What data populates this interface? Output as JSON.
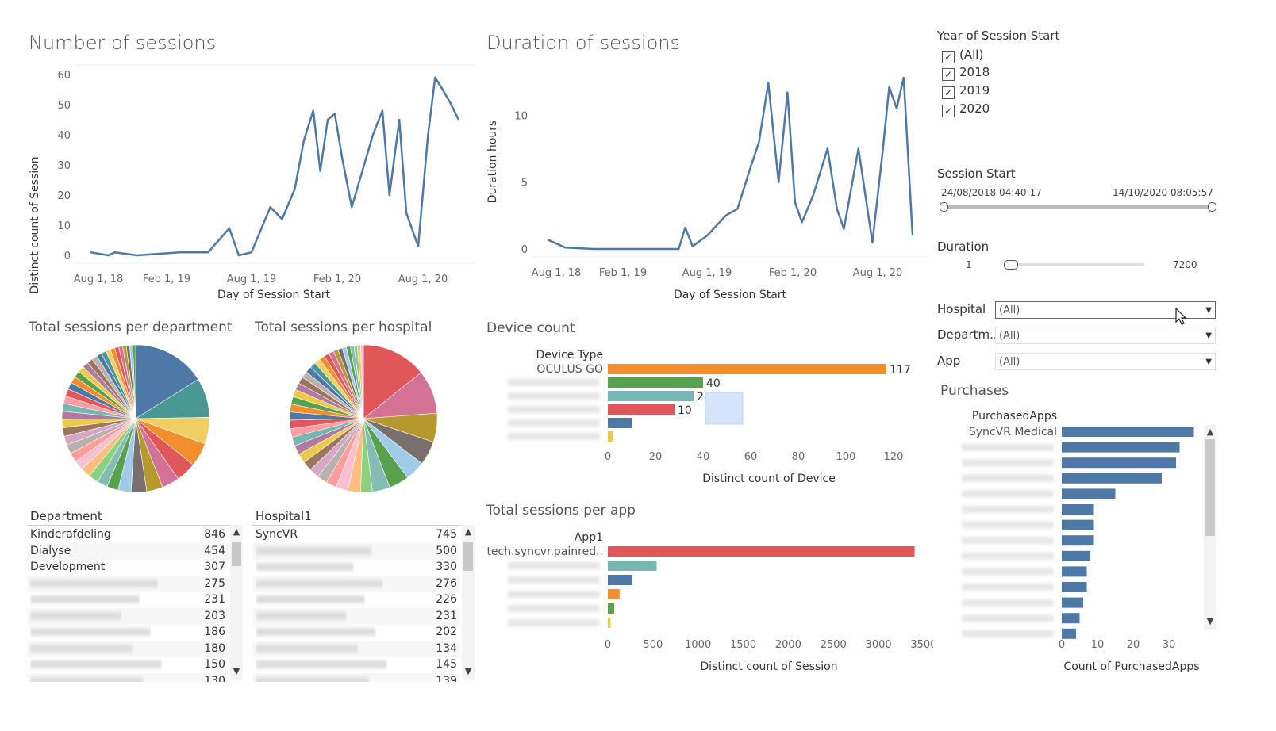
{
  "charts": {
    "sessions": {
      "title": "Number of sessions",
      "ylabel": "Distinct count of Session",
      "xlabel": "Day of Session Start",
      "xticks": [
        "Aug 1, 18",
        "Feb 1, 19",
        "Aug 1, 19",
        "Feb 1, 20",
        "Aug 1, 20"
      ],
      "yticks": [
        "60",
        "50",
        "40",
        "30",
        "20",
        "10",
        "0"
      ]
    },
    "duration": {
      "title": "Duration of sessions",
      "ylabel": "Duration hours",
      "xlabel": "Day of Session Start",
      "xticks": [
        "Aug 1, 18",
        "Feb 1, 19",
        "Aug 1, 19",
        "Feb 1, 20",
        "Aug 1, 20"
      ],
      "yticks": [
        "10",
        "5",
        "0"
      ]
    },
    "dept_pie": {
      "title": "Total sessions per department"
    },
    "hosp_pie": {
      "title": "Total sessions per hospital"
    },
    "device": {
      "title": "Device count",
      "header": "Device Type",
      "first_label": "OCULUS  GO",
      "xlabel": "Distinct count of Device",
      "xticks": [
        "0",
        "20",
        "40",
        "60",
        "80",
        "100",
        "120"
      ],
      "value_labels": [
        "117",
        "40",
        "28",
        "10"
      ]
    },
    "app": {
      "title": "Total sessions per app",
      "header": "App1",
      "first_label": "tech.syncvr.painred..",
      "xlabel": "Distinct count of Session",
      "xticks": [
        "0",
        "500",
        "1000",
        "1500",
        "2000",
        "2500",
        "3000",
        "3500"
      ]
    },
    "purchases": {
      "title": "Purchases",
      "header": "PurchasedApps",
      "first_label": "SyncVR Medical",
      "xlabel": "Count of PurchasedApps",
      "xticks": [
        "0",
        "10",
        "20",
        "30"
      ]
    }
  },
  "tables": {
    "department": {
      "header": "Department",
      "rows": [
        {
          "name": "Kinderafdeling",
          "value": "846"
        },
        {
          "name": "Dialyse",
          "value": "454"
        },
        {
          "name": "Development",
          "value": "307"
        },
        {
          "name": "",
          "value": "275"
        },
        {
          "name": "",
          "value": "231"
        },
        {
          "name": "",
          "value": "203"
        },
        {
          "name": "",
          "value": "186"
        },
        {
          "name": "",
          "value": "180"
        },
        {
          "name": "",
          "value": "150"
        },
        {
          "name": "",
          "value": "130"
        }
      ]
    },
    "hospital": {
      "header": "Hospital1",
      "rows": [
        {
          "name": "SyncVR",
          "value": "745"
        },
        {
          "name": "",
          "value": "500"
        },
        {
          "name": "",
          "value": "330"
        },
        {
          "name": "",
          "value": "276"
        },
        {
          "name": "",
          "value": "226"
        },
        {
          "name": "",
          "value": "231"
        },
        {
          "name": "",
          "value": "202"
        },
        {
          "name": "",
          "value": "134"
        },
        {
          "name": "",
          "value": "145"
        },
        {
          "name": "",
          "value": "139"
        }
      ]
    }
  },
  "filters": {
    "year": {
      "title": "Year of Session Start",
      "options": [
        {
          "label": "(All)",
          "checked": true
        },
        {
          "label": "2018",
          "checked": true
        },
        {
          "label": "2019",
          "checked": true
        },
        {
          "label": "2020",
          "checked": true
        }
      ]
    },
    "session_start": {
      "title": "Session Start",
      "from": "24/08/2018 04:40:17",
      "to": "14/10/2020 08:05:57"
    },
    "duration": {
      "title": "Duration",
      "min": "1",
      "max": "7200"
    },
    "hospital": {
      "label": "Hospital",
      "value": "(All)"
    },
    "department": {
      "label": "Departm..",
      "value": "(All)"
    },
    "app": {
      "label": "App",
      "value": "(All)"
    }
  },
  "chart_data": [
    {
      "type": "line",
      "title": "Number of sessions",
      "xlabel": "Day of Session Start",
      "ylabel": "Distinct count of Session",
      "ylim": [
        0,
        60
      ],
      "xrange": [
        "2018-08-24",
        "2020-10-14"
      ],
      "x": [
        "2018-08-24",
        "2018-10-01",
        "2018-10-15",
        "2018-12-01",
        "2019-03-01",
        "2019-05-01",
        "2019-06-15",
        "2019-07-05",
        "2019-08-01",
        "2019-09-10",
        "2019-10-05",
        "2019-11-01",
        "2019-11-20",
        "2019-12-10",
        "2019-12-25",
        "2020-01-10",
        "2020-01-25",
        "2020-02-10",
        "2020-03-01",
        "2020-04-15",
        "2020-05-05",
        "2020-05-20",
        "2020-06-10",
        "2020-06-25",
        "2020-07-20",
        "2020-08-10",
        "2020-08-25",
        "2020-09-10",
        "2020-09-25",
        "2020-10-14"
      ],
      "series": [
        {
          "values": [
            1,
            0,
            1,
            0,
            1,
            1,
            9,
            0,
            1,
            16,
            12,
            22,
            38,
            48,
            28,
            45,
            47,
            32,
            16,
            40,
            48,
            20,
            45,
            14,
            3,
            40,
            59,
            55,
            51,
            45
          ]
        }
      ]
    },
    {
      "type": "line",
      "title": "Duration of sessions",
      "xlabel": "Day of Session Start",
      "ylabel": "Duration hours",
      "xrange": [
        "2018-08-24",
        "2020-10-14"
      ],
      "x": [
        "2018-08-24",
        "2018-10-01",
        "2018-12-01",
        "2019-03-01",
        "2019-06-01",
        "2019-06-15",
        "2019-07-01",
        "2019-08-01",
        "2019-09-10",
        "2019-10-05",
        "2019-11-01",
        "2019-11-20",
        "2019-12-10",
        "2020-01-01",
        "2020-01-20",
        "2020-02-05",
        "2020-02-20",
        "2020-03-15",
        "2020-04-15",
        "2020-05-05",
        "2020-05-20",
        "2020-06-20",
        "2020-07-20",
        "2020-08-10",
        "2020-08-25",
        "2020-09-10",
        "2020-09-25",
        "2020-10-14"
      ],
      "series": [
        {
          "values": [
            0.7,
            0.1,
            0.0,
            0.0,
            0.0,
            1.6,
            0.2,
            1.0,
            2.5,
            3.0,
            6.0,
            8.0,
            12.4,
            5.0,
            11.7,
            3.5,
            2.0,
            4.0,
            7.5,
            3.0,
            1.5,
            7.5,
            0.5,
            7.0,
            12.1,
            10.5,
            12.8,
            1.0
          ]
        }
      ]
    },
    {
      "type": "bar",
      "title": "Device count",
      "xlabel": "Distinct count of Device",
      "categories": [
        "OCULUS  GO",
        "",
        "",
        "",
        "",
        ""
      ],
      "values": [
        117,
        40,
        36,
        28,
        10,
        2
      ],
      "xlim": [
        0,
        120
      ]
    },
    {
      "type": "bar",
      "title": "Total sessions per app",
      "xlabel": "Distinct count of Session",
      "categories": [
        "tech.syncvr.painred..",
        "",
        "",
        "",
        "",
        ""
      ],
      "values": [
        3400,
        540,
        270,
        130,
        70,
        30
      ],
      "xlim": [
        0,
        3500
      ]
    },
    {
      "type": "bar",
      "title": "Purchases",
      "xlabel": "Count of PurchasedApps",
      "categories": [
        "SyncVR Medical",
        "",
        "",
        "",
        "",
        "",
        "",
        "",
        "",
        "",
        "",
        "",
        "",
        ""
      ],
      "values": [
        37,
        33,
        32,
        28,
        15,
        9,
        9,
        9,
        8,
        7,
        7,
        6,
        5,
        4
      ],
      "xlim": [
        0,
        37
      ]
    },
    {
      "type": "pie",
      "title": "Total sessions per department",
      "values": [
        846,
        454,
        307,
        275,
        231,
        203,
        186,
        180,
        150,
        130
      ]
    },
    {
      "type": "pie",
      "title": "Total sessions per hospital",
      "values": [
        745,
        500,
        330,
        276,
        226,
        231,
        202,
        134,
        145,
        139
      ]
    }
  ]
}
